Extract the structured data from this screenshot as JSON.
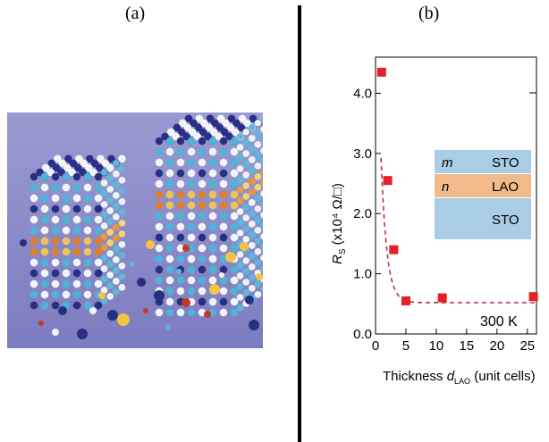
{
  "panels": {
    "a": {
      "label": "(a)"
    },
    "b": {
      "label": "(b)"
    }
  },
  "colors": {
    "marker": "#e5202a",
    "fit_line": "#c0303a",
    "sto_layer": "#a9cde4",
    "lao_layer": "#f2b98a",
    "illustration_bg": "#8f8fc9"
  },
  "chart_data": {
    "type": "scatter",
    "x_tick_labels": [
      "0",
      "5",
      "10",
      "15",
      "20",
      "25"
    ],
    "y_tick_labels": [
      "0.0",
      "1.0",
      "2.0",
      "3.0",
      "4.0"
    ],
    "xlim": [
      0,
      26.5
    ],
    "ylim": [
      0,
      4.6
    ],
    "xlabel_prefix": "Thickness ",
    "xlabel_var": "d",
    "xlabel_sub": "LAO",
    "xlabel_suffix": " (unit cells)",
    "ylabel_var": "R",
    "ylabel_sub": "S",
    "ylabel_unit": " (x10⁴ Ω/□)",
    "annotation": "300 K",
    "x": [
      1,
      2,
      3,
      5,
      11,
      26
    ],
    "y": [
      4.35,
      2.55,
      1.4,
      0.55,
      0.6,
      0.62
    ],
    "inset": {
      "rows": [
        {
          "var": "m",
          "material": "STO"
        },
        {
          "var": "n",
          "material": "LAO"
        },
        {
          "var": "",
          "material": "STO"
        }
      ]
    }
  }
}
